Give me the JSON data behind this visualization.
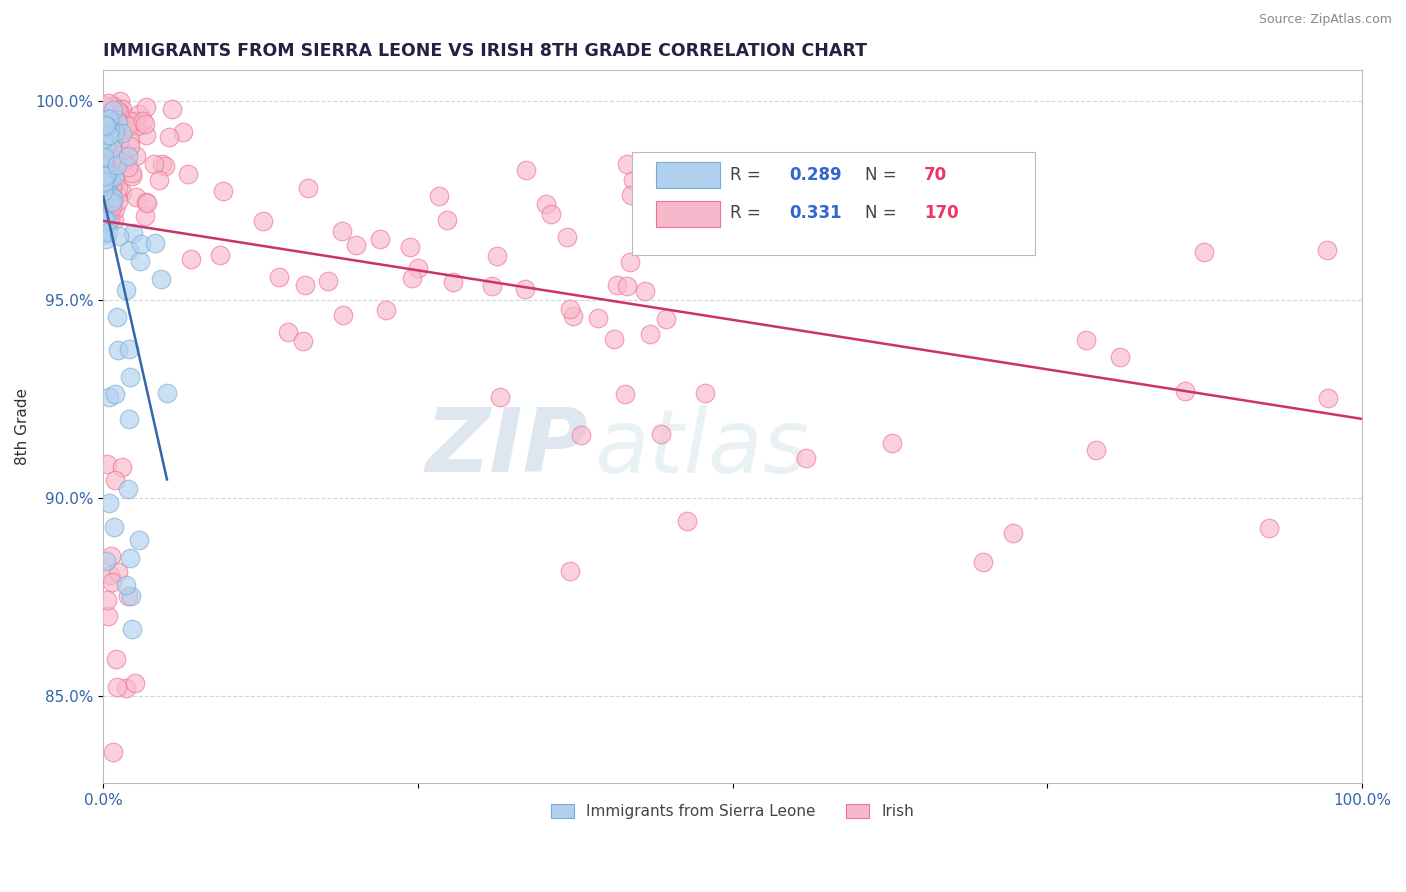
{
  "title": "IMMIGRANTS FROM SIERRA LEONE VS IRISH 8TH GRADE CORRELATION CHART",
  "source": "Source: ZipAtlas.com",
  "ylabel": "8th Grade",
  "watermark_zip": "ZIP",
  "watermark_atlas": "atlas",
  "x_min": 0.0,
  "x_max": 1.0,
  "y_min": 0.828,
  "y_max": 1.008,
  "y_ticks": [
    0.85,
    0.9,
    0.95,
    1.0
  ],
  "y_tick_labels": [
    "85.0%",
    "90.0%",
    "95.0%",
    "100.0%"
  ],
  "color_blue": "#7AABD4",
  "color_pink": "#F07090",
  "color_blue_fill": "#B0D0EE",
  "color_pink_fill": "#F8B8CC",
  "title_color": "#222244",
  "grid_color": "#CCCCCC",
  "trend_blue": "#3366AA",
  "trend_pink": "#CC3366",
  "seed": 7,
  "n_blue": 70,
  "n_pink": 170,
  "R_blue": 0.289,
  "R_pink": 0.331,
  "background_color": "#FFFFFF",
  "legend_label_blue": "Immigrants from Sierra Leone",
  "legend_label_pink": "Irish"
}
